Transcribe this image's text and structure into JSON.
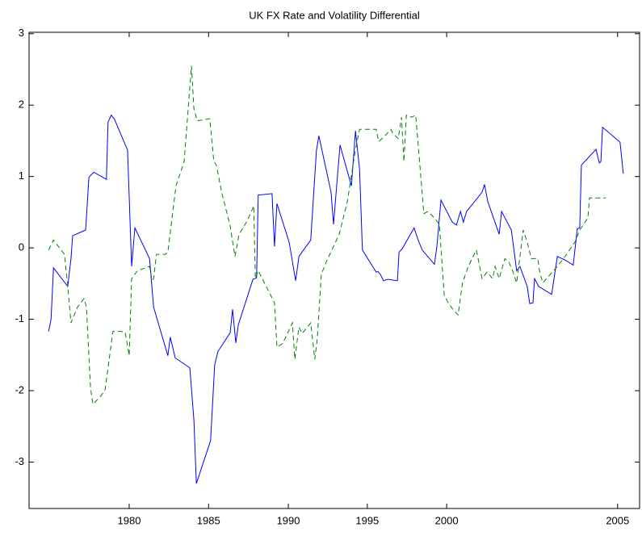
{
  "chart_data": {
    "type": "line",
    "title": "UK FX Rate and Volatility Differential",
    "xlim": [
      0,
      150
    ],
    "ylim": [
      -3.65,
      3.02
    ],
    "xticks": [
      {
        "value": 24.6,
        "label": "1980"
      },
      {
        "value": 44.1,
        "label": "1985"
      },
      {
        "value": 63.7,
        "label": "1990"
      },
      {
        "value": 83.1,
        "label": "1995"
      },
      {
        "value": 102.6,
        "label": "2000"
      },
      {
        "value": 144.6,
        "label": "2005"
      }
    ],
    "yticks": [
      -3,
      -2,
      -1,
      0,
      1,
      2,
      3
    ],
    "series": [
      {
        "color": "#0000ff",
        "dash": "solid",
        "x": [
          4.8,
          5.4,
          6.0,
          9.5,
          10.3,
          10.7,
          13.9,
          14.7,
          15.9,
          19.0,
          19.4,
          20.2,
          21.0,
          24.2,
          25.2,
          26.0,
          29.6,
          30.6,
          34.1,
          34.7,
          35.9,
          39.5,
          40.5,
          41.1,
          44.6,
          45.6,
          46.4,
          49.4,
          50.0,
          50.8,
          51.4,
          55.0,
          55.9,
          56.3,
          59.7,
          60.3,
          60.9,
          63.9,
          65.5,
          66.3,
          69.2,
          70.6,
          71.2,
          74.2,
          74.8,
          76.4,
          79.2,
          80.2,
          81.2,
          81.9,
          85.3,
          85.7,
          86.3,
          87.1,
          88.1,
          90.5,
          90.9,
          91.7,
          94.6,
          95.6,
          96.6,
          99.6,
          100.2,
          101.2,
          104.0,
          105.0,
          106.0,
          106.7,
          107.5,
          111.3,
          111.9,
          112.7,
          115.5,
          116.1,
          118.5,
          119.8,
          120.6,
          122.4,
          123.0,
          123.8,
          124.2,
          125.2,
          128.4,
          129.8,
          131.7,
          133.7,
          134.7,
          135.3,
          135.7,
          139.3,
          140.1,
          140.5,
          140.9,
          145.2,
          146.0
        ],
        "values": [
          -1.17,
          -1.0,
          -0.28,
          -0.54,
          -0.15,
          0.17,
          0.25,
          0.99,
          1.06,
          0.96,
          1.76,
          1.86,
          1.8,
          1.37,
          -0.26,
          0.28,
          -0.15,
          -0.83,
          -1.51,
          -1.25,
          -1.54,
          -1.68,
          -2.41,
          -3.3,
          -2.7,
          -1.64,
          -1.45,
          -1.19,
          -0.86,
          -1.33,
          -1.08,
          -0.44,
          -0.42,
          0.74,
          0.76,
          0.02,
          0.62,
          0.08,
          -0.46,
          -0.12,
          0.11,
          1.36,
          1.57,
          0.78,
          0.33,
          1.44,
          0.87,
          1.64,
          1.1,
          -0.03,
          -0.34,
          -0.33,
          -0.37,
          -0.46,
          -0.44,
          -0.46,
          -0.06,
          -0.01,
          0.28,
          0.11,
          -0.03,
          -0.23,
          0.02,
          0.67,
          0.36,
          0.32,
          0.51,
          0.36,
          0.51,
          0.78,
          0.89,
          0.65,
          0.19,
          0.51,
          0.25,
          -0.32,
          -0.26,
          -0.54,
          -0.78,
          -0.77,
          -0.43,
          -0.54,
          -0.65,
          -0.12,
          -0.17,
          -0.24,
          0.27,
          0.28,
          1.16,
          1.38,
          1.19,
          1.21,
          1.69,
          1.48,
          1.04
        ]
      },
      {
        "color": "#008000",
        "dash": "dashed",
        "x": [
          4.8,
          6.0,
          8.7,
          9.5,
          10.3,
          11.9,
          13.5,
          14.1,
          15.1,
          15.7,
          17.7,
          18.7,
          19.8,
          20.6,
          22.6,
          23.6,
          24.6,
          25.2,
          26.6,
          29.6,
          30.2,
          30.6,
          31.3,
          33.5,
          34.1,
          36.1,
          38.1,
          39.9,
          40.5,
          41.3,
          44.4,
          45.4,
          46.0,
          47.4,
          49.4,
          50.6,
          51.6,
          53.4,
          54.4,
          55.2,
          55.6,
          56.3,
          57.3,
          60.3,
          60.9,
          62.3,
          64.7,
          65.3,
          66.3,
          67.1,
          69.2,
          70.2,
          70.8,
          71.8,
          73.0,
          76.2,
          78.2,
          80.2,
          81.2,
          83.7,
          85.3,
          85.9,
          87.1,
          88.9,
          89.3,
          90.7,
          91.5,
          92.1,
          92.7,
          94.0,
          95.0,
          97.0,
          98.0,
          99.6,
          100.8,
          102.0,
          102.8,
          104.0,
          105.4,
          106.5,
          107.9,
          109.9,
          111.3,
          112.5,
          113.9,
          114.5,
          115.5,
          116.9,
          117.9,
          118.8,
          119.8,
          120.8,
          121.4,
          122.4,
          123.4,
          125.0,
          125.4,
          126.2,
          129.8,
          131.7,
          134.1,
          135.3,
          137.3,
          137.7,
          141.7
        ],
        "values": [
          -0.03,
          0.11,
          -0.09,
          -0.54,
          -1.05,
          -0.83,
          -0.71,
          -0.83,
          -1.96,
          -2.19,
          -2.07,
          -1.98,
          -1.51,
          -1.17,
          -1.17,
          -1.18,
          -1.51,
          -0.43,
          -0.32,
          -0.26,
          -0.45,
          -0.43,
          -0.09,
          -0.09,
          -0.06,
          0.87,
          1.21,
          2.55,
          1.95,
          1.78,
          1.81,
          1.21,
          1.16,
          0.76,
          0.31,
          -0.12,
          0.19,
          0.36,
          0.48,
          0.59,
          -0.43,
          -0.32,
          -0.43,
          -0.77,
          -1.39,
          -1.34,
          -1.05,
          -1.56,
          -1.11,
          -1.2,
          -1.05,
          -1.56,
          -1.28,
          -0.37,
          -0.2,
          0.19,
          0.65,
          1.38,
          1.66,
          1.66,
          1.66,
          1.49,
          1.55,
          1.66,
          1.61,
          1.53,
          1.83,
          1.21,
          1.86,
          1.83,
          1.86,
          0.48,
          0.51,
          0.42,
          0.33,
          -0.66,
          -0.75,
          -0.85,
          -0.94,
          -0.49,
          -0.26,
          -0.03,
          -0.43,
          -0.34,
          -0.43,
          -0.26,
          -0.43,
          -0.15,
          -0.2,
          -0.32,
          -0.49,
          -0.03,
          0.25,
          0.08,
          -0.15,
          -0.15,
          -0.32,
          -0.49,
          -0.26,
          -0.12,
          0.08,
          0.25,
          0.42,
          0.7,
          0.7
        ]
      }
    ]
  }
}
